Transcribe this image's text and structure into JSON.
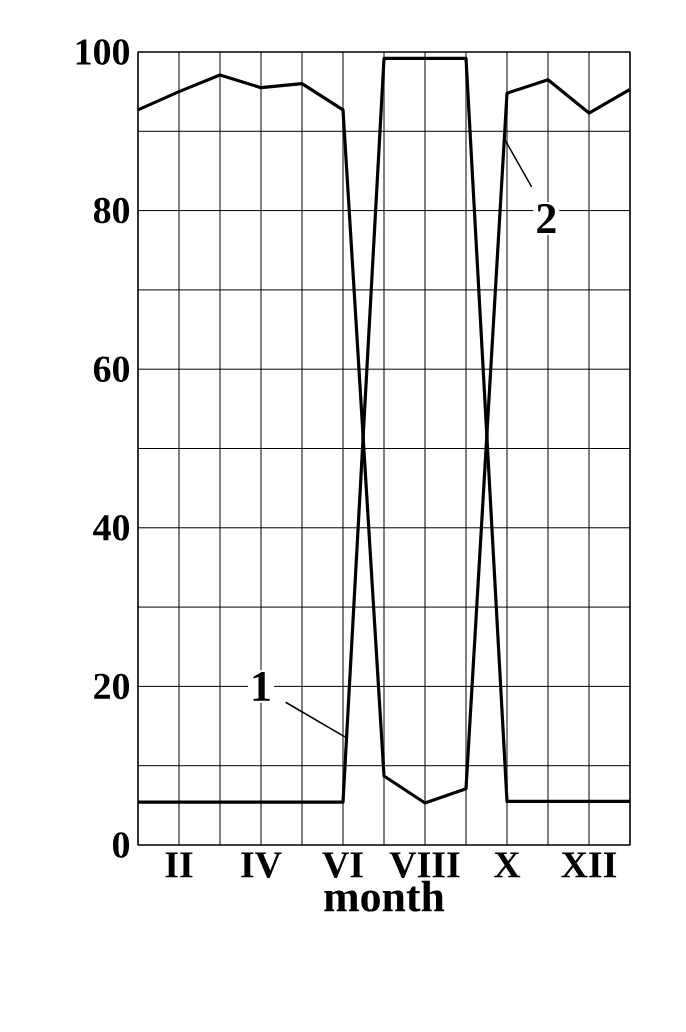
{
  "chart_data": {
    "type": "line",
    "xlabel": "month",
    "categories": [
      null,
      "II",
      null,
      "IV",
      null,
      "VI",
      null,
      "VIII",
      null,
      "X",
      null,
      "XII",
      null
    ],
    "ylim": [
      0,
      100
    ],
    "yticks": [
      0,
      {
        "value": 10,
        "label": null
      },
      20,
      {
        "value": 30,
        "label": null
      },
      40,
      {
        "value": 50,
        "label": null
      },
      60,
      {
        "value": 70,
        "label": null
      },
      80,
      {
        "value": 90,
        "label": null
      },
      100
    ],
    "grid": true,
    "marker": "none",
    "line_style": "solid",
    "series": [
      {
        "name": "1",
        "color": "#000000",
        "values": [
          5.4,
          5.4,
          5.4,
          5.4,
          5.4,
          5.4,
          99.2,
          99.2,
          99.2,
          5.5,
          5.5,
          5.5,
          5.5
        ]
      },
      {
        "name": "2",
        "color": "#000000",
        "values": [
          92.7,
          95,
          97.1,
          95.5,
          96,
          92.7,
          8.7,
          5.3,
          7.1,
          94.8,
          96.5,
          92.3,
          95.3
        ]
      }
    ]
  }
}
